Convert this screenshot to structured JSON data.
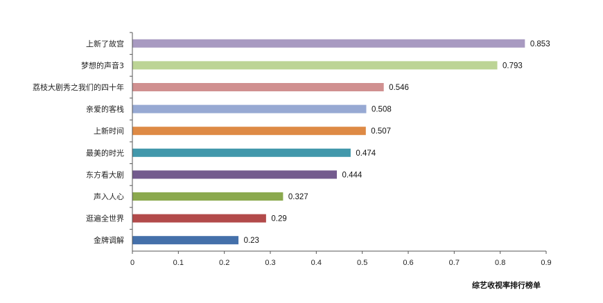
{
  "chart_data": {
    "type": "bar",
    "orientation": "horizontal",
    "title": "综艺收视率排行榜单",
    "title_position": "bottom-right",
    "categories": [
      "上新了故宫",
      "梦想的声音3",
      "荔枝大剧秀之我们的四十年",
      "亲爱的客栈",
      "上新时间",
      "最美的时光",
      "东方看大剧",
      "声入人心",
      "逛遍全世界",
      "金牌调解"
    ],
    "values": [
      0.853,
      0.793,
      0.546,
      0.508,
      0.507,
      0.474,
      0.444,
      0.327,
      0.29,
      0.23
    ],
    "value_labels": [
      "0.853",
      "0.793",
      "0.546",
      "0.508",
      "0.507",
      "0.474",
      "0.444",
      "0.327",
      "0.29",
      "0.23"
    ],
    "colors": [
      "#a89ac1",
      "#bcd495",
      "#d09090",
      "#97a9d3",
      "#de8a45",
      "#4298ab",
      "#735b8e",
      "#8ba94e",
      "#b24a4a",
      "#4470aa"
    ],
    "xlim": [
      0,
      0.9
    ],
    "xticks": [
      "0",
      "0.1",
      "0.2",
      "0.3",
      "0.4",
      "0.5",
      "0.6",
      "0.7",
      "0.8",
      "0.9"
    ],
    "grid": false,
    "legend": "none",
    "xlabel": "",
    "ylabel": ""
  }
}
